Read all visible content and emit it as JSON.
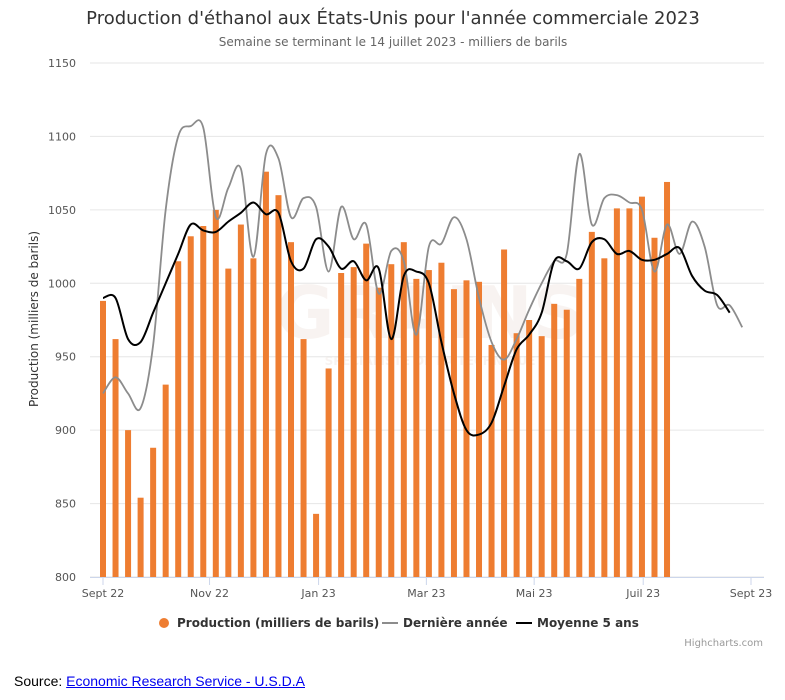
{
  "chart_data": {
    "type": "bar",
    "title": "Production d'éthanol aux États-Unis pour l'année commerciale 2023",
    "subtitle": "Semaine se terminant le 14 juillet 2023 - milliers de barils",
    "ylabel": "Production (milliers de barils)",
    "ylim": [
      800,
      1150
    ],
    "yticks": [
      800,
      850,
      900,
      950,
      1000,
      1050,
      1100,
      1150
    ],
    "x_ticks": [
      {
        "label": "Sept 22",
        "week": 0
      },
      {
        "label": "Nov 22",
        "week": 8.5
      },
      {
        "label": "Jan 23",
        "week": 17.2
      },
      {
        "label": "Mar 23",
        "week": 25.8
      },
      {
        "label": "Mai 23",
        "week": 34.4
      },
      {
        "label": "Juil 23",
        "week": 43.1
      },
      {
        "label": "Sept 23",
        "week": 51.7
      }
    ],
    "x_range_weeks": [
      0,
      51.7
    ],
    "grid": true,
    "legend_position": "bottom-center",
    "series": [
      {
        "name": "Production (milliers de barils)",
        "type": "bar",
        "color": "#ee7d31",
        "values": [
          988,
          962,
          900,
          854,
          888,
          931,
          1015,
          1032,
          1039,
          1050,
          1010,
          1040,
          1017,
          1076,
          1060,
          1028,
          962,
          843,
          942,
          1007,
          1011,
          1027,
          997,
          1013,
          1028,
          1003,
          1009,
          1014,
          996,
          1002,
          1001,
          958,
          1023,
          966,
          975,
          964,
          986,
          982,
          1003,
          1035,
          1017,
          1051,
          1051,
          1059,
          1031,
          1069
        ]
      },
      {
        "name": "Dernière année",
        "type": "line",
        "color": "#8c8c8c",
        "values": [
          925,
          936,
          925,
          915,
          958,
          1050,
          1100,
          1107,
          1106,
          1045,
          1065,
          1078,
          1018,
          1088,
          1085,
          1045,
          1058,
          1052,
          1008,
          1052,
          1030,
          1040,
          993,
          1022,
          1015,
          965,
          1025,
          1027,
          1045,
          1030,
          990,
          960,
          948,
          962,
          982,
          1000,
          1015,
          1020,
          1088,
          1040,
          1058,
          1060,
          1055,
          1050,
          1008,
          1040,
          1020,
          1042,
          1025,
          985,
          985,
          970
        ]
      },
      {
        "name": "Moyenne 5 ans",
        "type": "line",
        "color": "#000000",
        "values": [
          990,
          990,
          962,
          960,
          980,
          1000,
          1020,
          1040,
          1036,
          1035,
          1042,
          1048,
          1055,
          1047,
          1048,
          1015,
          1010,
          1030,
          1025,
          1010,
          1015,
          1002,
          1010,
          962,
          1005,
          1008,
          1000,
          960,
          925,
          900,
          897,
          905,
          930,
          955,
          965,
          980,
          1015,
          1015,
          1010,
          1028,
          1030,
          1020,
          1022,
          1016,
          1016,
          1020,
          1024,
          1005,
          995,
          992,
          980
        ]
      }
    ]
  },
  "watermark_text": "GRAINS",
  "watermark_sub": "SPÉCIALISTE DE LA TECHNIQUE",
  "credits": "Highcharts.com",
  "source": {
    "label": "Source: ",
    "link_text": "Economic Research Service - U.S.D.A"
  },
  "colors": {
    "bar": "#ee7d31",
    "last_year": "#8c8c8c",
    "five_year_avg": "#000000",
    "grid": "#e6e6e6"
  }
}
